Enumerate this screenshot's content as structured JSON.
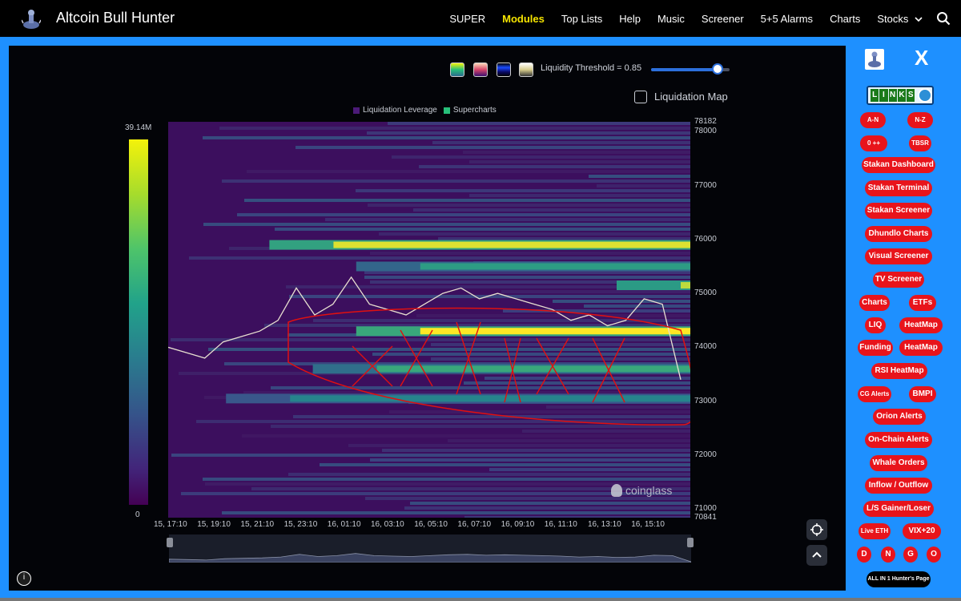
{
  "app": {
    "brand": "Altcoin Bull Hunter",
    "logo_icon": "bull-rider-icon"
  },
  "nav": {
    "items": [
      {
        "label": "SUPER",
        "active": false
      },
      {
        "label": "Modules",
        "active": true
      },
      {
        "label": "Top Lists",
        "active": false
      },
      {
        "label": "Help",
        "active": false
      },
      {
        "label": "Music",
        "active": false
      },
      {
        "label": "Screener",
        "active": false
      },
      {
        "label": "5+5 Alarms",
        "active": false
      },
      {
        "label": "Charts",
        "active": false
      },
      {
        "label": "Stocks",
        "active": false
      }
    ],
    "stocks_chevron_icon": "chevron-down-icon",
    "search_icon": "search-icon",
    "active_color": "#f5e400"
  },
  "chart": {
    "threshold_label": "Liquidity Threshold = 0.85",
    "threshold_value": 0.85,
    "liquidation_map_label": "Liquidation Map",
    "liquidation_map_checked": false,
    "legend": [
      {
        "label": "Liquidation Leverage",
        "color": "#4b1a78"
      },
      {
        "label": "Supercharts",
        "color": "#27c07a"
      }
    ],
    "colorbar_max": "39.14M",
    "colorbar_min": "0",
    "watermark": "coinglass",
    "swatches": [
      "viridis",
      "magma",
      "blue",
      "gray"
    ]
  },
  "chart_data": {
    "type": "heatmap",
    "title": "",
    "xlabel": "",
    "ylabel": "",
    "y_ticks": [
      "78182",
      "78000",
      "77000",
      "76000",
      "75000",
      "74000",
      "73000",
      "72000",
      "71000",
      "70841"
    ],
    "x_ticks": [
      "15, 17:10",
      "15, 19:10",
      "15, 21:10",
      "15, 23:10",
      "16, 01:10",
      "16, 03:10",
      "16, 05:10",
      "16, 07:10",
      "16, 09:10",
      "16, 11:10",
      "16, 13:10",
      "16, 15:10"
    ],
    "ylim": [
      70841,
      78182
    ],
    "colorbar_range": [
      "0",
      "39.14M"
    ],
    "bands": [
      {
        "price": 75900,
        "start": "15, 21:10",
        "intensity": 0.95
      },
      {
        "price": 75150,
        "start": "16, 13:10",
        "intensity": 0.9
      },
      {
        "price": 75500,
        "start": "16, 01:10",
        "intensity": 0.55
      },
      {
        "price": 74300,
        "start": "16, 01:10",
        "intensity": 1.0
      },
      {
        "price": 73600,
        "start": "15, 23:10",
        "intensity": 0.6
      },
      {
        "price": 73050,
        "start": "15, 19:10",
        "intensity": 0.45
      }
    ],
    "price_series": [
      74000,
      73900,
      73800,
      74100,
      74200,
      74300,
      74500,
      75100,
      74600,
      74800,
      75300,
      74800,
      74700,
      74600,
      74800,
      75000,
      75100,
      74900,
      75000,
      74900,
      74800,
      74700,
      74500,
      74600,
      74400,
      74500,
      74900,
      74800,
      73400
    ]
  },
  "sidebar": {
    "close_label": "X",
    "links_label": "LINKS",
    "buttons": [
      {
        "label": "A-N",
        "small": true
      },
      {
        "label": "N-Z",
        "small": true
      },
      {
        "label": "0 ++",
        "small": true
      },
      {
        "label": "TBSR",
        "small": true
      },
      {
        "label": "Stakan Dashboard"
      },
      {
        "label": "Stakan Terminal"
      },
      {
        "label": "Stakan Screener"
      },
      {
        "label": "Dhundlo Charts"
      },
      {
        "label": "Visual Screener"
      },
      {
        "label": "TV Screener"
      },
      {
        "label": "Charts"
      },
      {
        "label": "ETFs"
      },
      {
        "label": "LIQ"
      },
      {
        "label": "HeatMap"
      },
      {
        "label": "Funding"
      },
      {
        "label": "HeatMap"
      },
      {
        "label": "RSI HeatMap"
      },
      {
        "label": "CG Alerts",
        "small": true
      },
      {
        "label": "BMPI"
      },
      {
        "label": "Orion Alerts"
      },
      {
        "label": "On-Chain Alerts"
      },
      {
        "label": "Whale Orders"
      },
      {
        "label": "Inflow / Outflow"
      },
      {
        "label": "L/S Gainer/Loser"
      },
      {
        "label": "Live ETH",
        "small": true
      },
      {
        "label": "VIX+20"
      },
      {
        "label": "D"
      },
      {
        "label": "N"
      },
      {
        "label": "G"
      },
      {
        "label": "O"
      },
      {
        "label": "ALL IN 1 Hunter's Page"
      }
    ]
  }
}
